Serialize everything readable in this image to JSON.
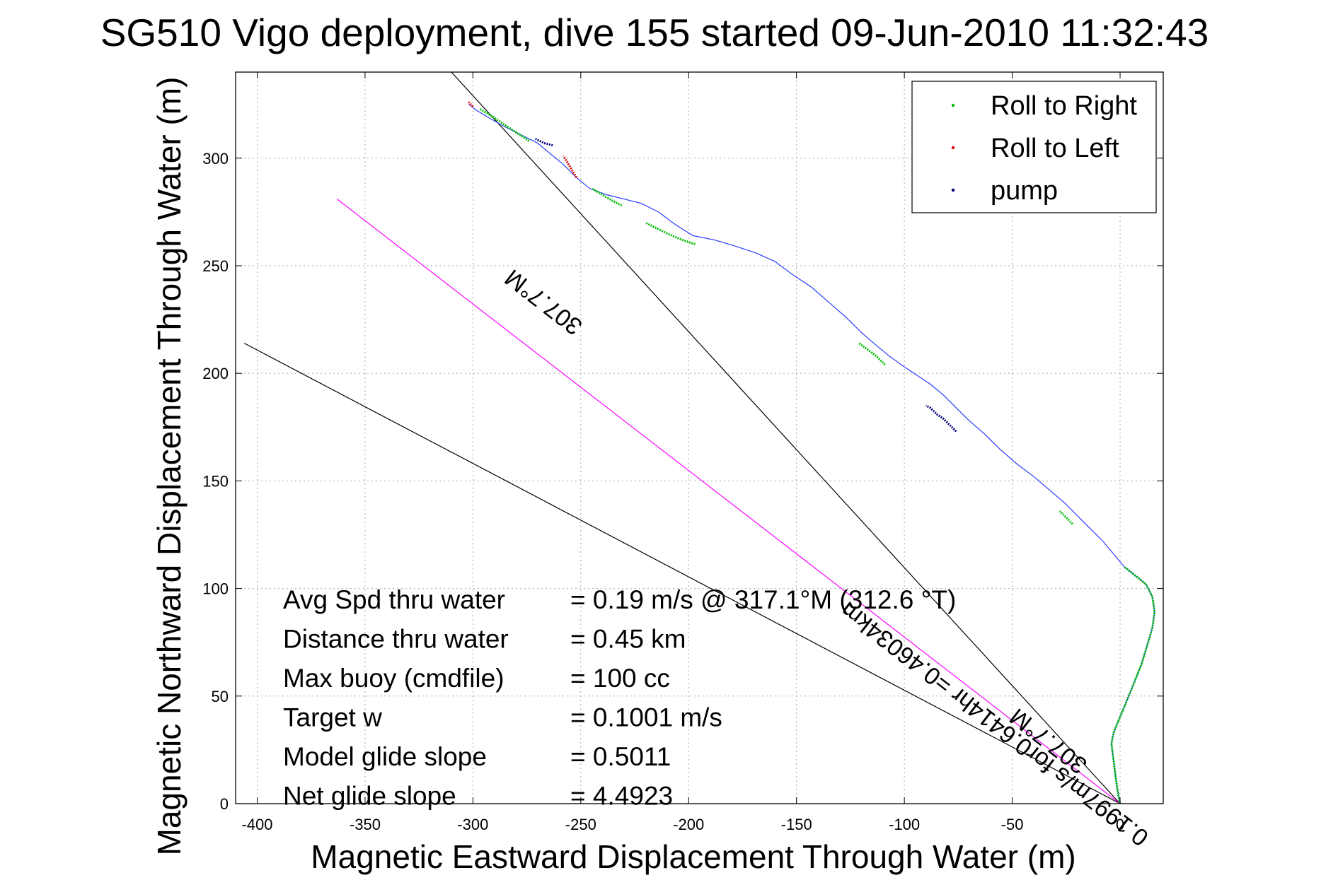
{
  "chart_data": {
    "type": "line",
    "title": "SG510 Vigo deployment, dive 155 started 09-Jun-2010 11:32:43",
    "xlabel": "Magnetic Eastward Displacement Through Water (m)",
    "ylabel": "Magnetic Northward Displacement Through Water (m)",
    "xlim": [
      -410,
      20
    ],
    "ylim": [
      0,
      340
    ],
    "xticks": [
      -400,
      -350,
      -300,
      -250,
      -200,
      -150,
      -100,
      -50,
      0
    ],
    "yticks": [
      0,
      50,
      100,
      150,
      200,
      250,
      300
    ],
    "grid": true,
    "legend_position": "top-right",
    "legend": [
      {
        "label": "Roll to Right",
        "color": "#00c000"
      },
      {
        "label": "Roll to Left",
        "color": "#e00000"
      },
      {
        "label": "pump",
        "color": "#000080"
      }
    ],
    "track": {
      "name": "glider track",
      "color": "#2a3cff",
      "x": [
        0,
        -1,
        -2,
        -3,
        -4,
        -3,
        -1,
        2,
        6,
        10,
        13,
        15,
        16,
        15,
        12,
        7,
        2,
        -3,
        -8,
        -14,
        -20,
        -26,
        -33,
        -40,
        -48,
        -56,
        -63,
        -70,
        -76,
        -82,
        -88,
        -94,
        -100,
        -107,
        -113,
        -120,
        -127,
        -135,
        -143,
        -152,
        -160,
        -169,
        -178,
        -188,
        -198,
        -206,
        -214,
        -222,
        -230,
        -238,
        -246,
        -252,
        -258,
        -264,
        -270,
        -278,
        -286,
        -293,
        -298,
        -302
      ],
      "y": [
        0,
        5,
        12,
        20,
        28,
        33,
        38,
        45,
        55,
        65,
        75,
        82,
        89,
        96,
        102,
        106,
        110,
        116,
        122,
        128,
        134,
        140,
        146,
        152,
        158,
        165,
        172,
        178,
        184,
        190,
        195,
        199,
        203,
        208,
        213,
        219,
        226,
        233,
        240,
        246,
        252,
        256,
        259,
        262,
        264,
        269,
        275,
        279,
        281,
        283,
        286,
        291,
        297,
        302,
        307,
        311,
        315,
        319,
        322,
        325
      ]
    },
    "roll_right_segments": [
      {
        "x": [
          0,
          -1,
          -2,
          -3,
          -4,
          -3,
          -1,
          2,
          6,
          10,
          13,
          15,
          16,
          15,
          12,
          7,
          2
        ],
        "y": [
          0,
          5,
          12,
          20,
          28,
          33,
          38,
          45,
          55,
          65,
          75,
          82,
          89,
          96,
          102,
          106,
          110
        ]
      },
      {
        "x": [
          -22,
          -24,
          -26,
          -28
        ],
        "y": [
          130,
          132,
          134,
          136
        ]
      },
      {
        "x": [
          -109,
          -113,
          -117,
          -121
        ],
        "y": [
          204,
          208,
          211,
          214
        ]
      },
      {
        "x": [
          -197,
          -203,
          -210,
          -216,
          -220
        ],
        "y": [
          260,
          262,
          265,
          268,
          270
        ]
      },
      {
        "x": [
          -231,
          -235,
          -240,
          -245
        ],
        "y": [
          278,
          280,
          283,
          286
        ]
      },
      {
        "x": [
          -274,
          -280,
          -286,
          -292,
          -297
        ],
        "y": [
          308,
          312,
          316,
          320,
          323
        ]
      }
    ],
    "roll_left_segments": [
      {
        "x": [
          -252,
          -255,
          -258
        ],
        "y": [
          291,
          296,
          301
        ]
      },
      {
        "x": [
          -300,
          -302
        ],
        "y": [
          324,
          326
        ]
      }
    ],
    "pump_segments": [
      {
        "x": [
          -76,
          -79,
          -82,
          -85,
          -88,
          -90
        ],
        "y": [
          173,
          176,
          179,
          181,
          184,
          185
        ]
      },
      {
        "x": [
          -263,
          -267,
          -271
        ],
        "y": [
          306,
          307,
          309
        ]
      }
    ],
    "reference_lines": [
      {
        "name": "black line (steep)",
        "color": "#000000",
        "x": [
          0,
          -310
        ],
        "y": [
          0,
          340
        ]
      },
      {
        "name": "black line (shallow)",
        "color": "#000000",
        "x": [
          0,
          -406
        ],
        "y": [
          0,
          214
        ]
      },
      {
        "name": "magenta line",
        "color": "#ff00ff",
        "x": [
          0,
          -363
        ],
        "y": [
          0,
          281
        ]
      }
    ],
    "annotations": [
      {
        "text": "307.7°M",
        "x": -265,
        "y": 236,
        "angle": 37.8
      },
      {
        "text": "0.1997m/s for0.6414hr =0.46034km",
        "x": -56,
        "y": 40,
        "angle": 37.8
      },
      {
        "text": "307.7°M",
        "x": -31,
        "y": 32,
        "angle": 37.8
      }
    ]
  },
  "stats": [
    {
      "label": "Avg Spd thru water",
      "value": "=  0.19 m/s @ 317.1°M (312.6 °T)"
    },
    {
      "label": "Distance thru water",
      "value": "=  0.45 km"
    },
    {
      "label": "Max buoy (cmdfile)",
      "value": "= 100 cc"
    },
    {
      "label": "Target w",
      "value": "= 0.1001 m/s"
    },
    {
      "label": "Model glide slope",
      "value": "= 0.5011"
    },
    {
      "label": "Net glide slope",
      "value": "= 4.4923"
    }
  ]
}
